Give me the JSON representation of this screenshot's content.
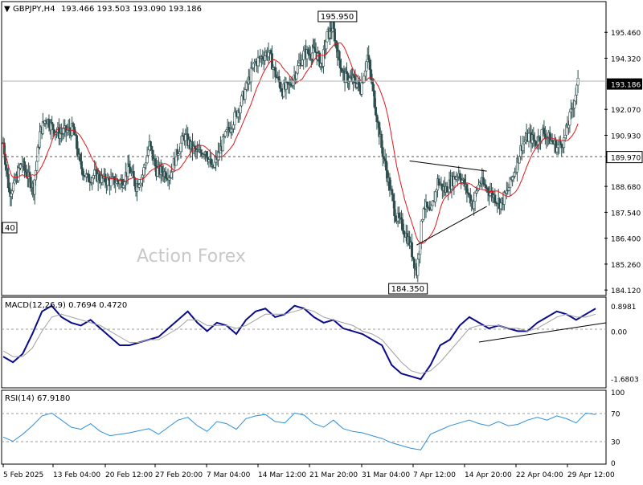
{
  "header": {
    "symbol": "GBPJPY,H4",
    "ohlc": "193.466 193.503 193.090 193.186"
  },
  "watermark": "Action Forex",
  "colors": {
    "candle": "#2f4f4f",
    "ma": "#e0161b",
    "macd": "#0a0a8c",
    "signal": "#a0a0a0",
    "rsi": "#2f8fd8",
    "level_line": "#888888",
    "trendline": "#000000",
    "frame": "#000000",
    "watermark": "#c8c8c8"
  },
  "chart_data": [
    {
      "type": "candlestick",
      "panel": "price",
      "symbol": "GBPJPY",
      "timeframe": "H4",
      "y_ticks": [
        "195.460",
        "194.320",
        "193.186",
        "192.070",
        "190.930",
        "189.970",
        "188.680",
        "187.540",
        "186.400",
        "185.260",
        "184.120"
      ],
      "ylim": [
        183.95,
        196.74
      ],
      "current_price": "193.186",
      "horizontal_level": "189.970",
      "annotations": [
        {
          "label": "195.950",
          "kind": "swing-high",
          "date": "31 Mar"
        },
        {
          "label": "184.350",
          "kind": "swing-low",
          "date": "7 Apr"
        },
        {
          "label": "40",
          "kind": "left-edge-label"
        }
      ],
      "moving_average": {
        "color": "#e0161b"
      },
      "trendlines": [
        {
          "from": [
            "7 Apr",
            189.8
          ],
          "to": [
            "18 Apr",
            189.35
          ]
        },
        {
          "from": [
            "8 Apr",
            186.1
          ],
          "to": [
            "18 Apr",
            187.8
          ]
        }
      ],
      "price_path": [
        [
          "5 Feb",
          190.6
        ],
        [
          "6 Feb",
          188.4
        ],
        [
          "7 Feb",
          188.9
        ],
        [
          "8 Feb",
          189.7
        ],
        [
          "10 Feb",
          188.6
        ],
        [
          "11 Feb",
          191.0
        ],
        [
          "12 Feb",
          191.7
        ],
        [
          "13 Feb",
          191.3
        ],
        [
          "14 Feb",
          191.0
        ],
        [
          "16 Feb",
          191.2
        ],
        [
          "17 Feb",
          189.6
        ],
        [
          "18 Feb",
          189.0
        ],
        [
          "19 Feb",
          189.2
        ],
        [
          "20 Feb",
          189.0
        ],
        [
          "21 Feb",
          188.9
        ],
        [
          "23 Feb",
          188.9
        ],
        [
          "24 Feb",
          189.5
        ],
        [
          "25 Feb",
          188.7
        ],
        [
          "26 Feb",
          189.2
        ],
        [
          "27 Feb",
          190.5
        ],
        [
          "28 Feb",
          189.4
        ],
        [
          "2 Mar",
          189.2
        ],
        [
          "3 Mar",
          190.2
        ],
        [
          "4 Mar",
          190.9
        ],
        [
          "5 Mar",
          190.4
        ],
        [
          "6 Mar",
          190.1
        ],
        [
          "7 Mar",
          190.3
        ],
        [
          "8 Mar",
          189.4
        ],
        [
          "10 Mar",
          191.0
        ],
        [
          "11 Mar",
          191.6
        ],
        [
          "12 Mar",
          192.3
        ],
        [
          "13 Mar",
          193.2
        ],
        [
          "14 Mar",
          194.1
        ],
        [
          "16 Mar",
          194.6
        ],
        [
          "17 Mar",
          193.6
        ],
        [
          "18 Mar",
          192.9
        ],
        [
          "19 Mar",
          193.1
        ],
        [
          "20 Mar",
          193.8
        ],
        [
          "21 Mar",
          194.5
        ],
        [
          "23 Mar",
          194.6
        ],
        [
          "24 Mar",
          194.0
        ],
        [
          "25 Mar",
          195.3
        ],
        [
          "26 Mar",
          195.7
        ],
        [
          "27 Mar",
          194.4
        ],
        [
          "28 Mar",
          193.5
        ],
        [
          "30 Mar",
          193.3
        ],
        [
          "31 Mar",
          193.0
        ],
        [
          "1 Apr",
          194.4
        ],
        [
          "2 Apr",
          192.4
        ],
        [
          "3 Apr",
          190.4
        ],
        [
          "4 Apr",
          188.9
        ],
        [
          "5 Apr",
          187.4
        ],
        [
          "6 Apr",
          186.9
        ],
        [
          "7 Apr",
          186.2
        ],
        [
          "8 Apr",
          184.9
        ],
        [
          "9 Apr",
          187.9
        ],
        [
          "10 Apr",
          187.4
        ],
        [
          "11 Apr",
          188.9
        ],
        [
          "12 Apr",
          188.5
        ],
        [
          "14 Apr",
          189.3
        ],
        [
          "15 Apr",
          188.6
        ],
        [
          "16 Apr",
          187.9
        ],
        [
          "17 Apr",
          188.9
        ],
        [
          "18 Apr",
          188.6
        ],
        [
          "20 Apr",
          187.9
        ],
        [
          "21 Apr",
          188.5
        ],
        [
          "22 Apr",
          189.4
        ],
        [
          "23 Apr",
          190.5
        ],
        [
          "24 Apr",
          190.9
        ],
        [
          "25 Apr",
          190.6
        ],
        [
          "26 Apr",
          191.1
        ],
        [
          "28 Apr",
          190.4
        ],
        [
          "29 Apr",
          190.7
        ],
        [
          "30 Apr",
          191.9
        ],
        [
          "1 May",
          193.2
        ]
      ]
    },
    {
      "type": "line",
      "panel": "macd",
      "label": "MACD(12,26,9) 0.7694 0.4720",
      "y_ticks": [
        "0.8981",
        "0.00",
        "-1.6803"
      ],
      "ylim": [
        -1.95,
        1.15
      ],
      "series": [
        {
          "name": "MACD",
          "color": "#0a0a8c",
          "values": [
            -0.9,
            -1.1,
            -0.8,
            -0.1,
            0.7,
            0.9,
            0.5,
            0.3,
            0.2,
            0.4,
            0.1,
            -0.2,
            -0.5,
            -0.5,
            -0.4,
            -0.3,
            -0.2,
            0.1,
            0.4,
            0.7,
            0.3,
            0.0,
            0.3,
            0.2,
            -0.1,
            0.4,
            0.7,
            0.8,
            0.5,
            0.6,
            0.9,
            0.8,
            0.5,
            0.3,
            0.4,
            0.1,
            0.0,
            -0.1,
            -0.3,
            -0.5,
            -1.2,
            -1.5,
            -1.6,
            -1.7,
            -1.2,
            -0.5,
            -0.3,
            0.2,
            0.5,
            0.3,
            0.1,
            0.2,
            0.1,
            0.0,
            0.0,
            0.3,
            0.5,
            0.7,
            0.6,
            0.4,
            0.6,
            0.8
          ]
        },
        {
          "name": "Signal",
          "color": "#a0a0a0",
          "values": [
            -0.7,
            -0.9,
            -0.9,
            -0.6,
            0.0,
            0.5,
            0.6,
            0.5,
            0.4,
            0.3,
            0.2,
            0.0,
            -0.2,
            -0.4,
            -0.4,
            -0.3,
            -0.3,
            -0.1,
            0.1,
            0.4,
            0.4,
            0.2,
            0.2,
            0.2,
            0.1,
            0.2,
            0.4,
            0.6,
            0.6,
            0.6,
            0.7,
            0.8,
            0.7,
            0.5,
            0.4,
            0.3,
            0.2,
            0.0,
            -0.1,
            -0.3,
            -0.7,
            -1.1,
            -1.4,
            -1.5,
            -1.4,
            -1.1,
            -0.7,
            -0.3,
            0.1,
            0.2,
            0.2,
            0.2,
            0.1,
            0.1,
            0.0,
            0.1,
            0.3,
            0.5,
            0.6,
            0.5,
            0.5,
            0.6
          ]
        }
      ]
    },
    {
      "type": "line",
      "panel": "rsi",
      "label": "RSI(14) 67.9180",
      "y_ticks": [
        "100",
        "70",
        "30",
        "0"
      ],
      "ylim": [
        0,
        100
      ],
      "series": [
        {
          "name": "RSI",
          "color": "#2f8fd8",
          "values": [
            36,
            30,
            40,
            52,
            66,
            70,
            60,
            50,
            47,
            55,
            44,
            38,
            40,
            42,
            45,
            48,
            40,
            50,
            60,
            64,
            52,
            44,
            58,
            55,
            47,
            62,
            66,
            68,
            58,
            56,
            70,
            67,
            55,
            50,
            60,
            48,
            44,
            42,
            38,
            34,
            28,
            24,
            20,
            18,
            40,
            46,
            52,
            56,
            60,
            55,
            52,
            58,
            52,
            54,
            60,
            64,
            60,
            66,
            62,
            56,
            70,
            68
          ]
        }
      ]
    }
  ],
  "x_axis": {
    "tick_labels": [
      "5 Feb 2025",
      "13 Feb 04:00",
      "20 Feb 12:00",
      "27 Feb 20:00",
      "7 Mar 04:00",
      "14 Mar 12:00",
      "21 Mar 20:00",
      "31 Mar 04:00",
      "7 Apr 12:00",
      "14 Apr 20:00",
      "22 Apr 04:00",
      "29 Apr 12:00"
    ]
  }
}
